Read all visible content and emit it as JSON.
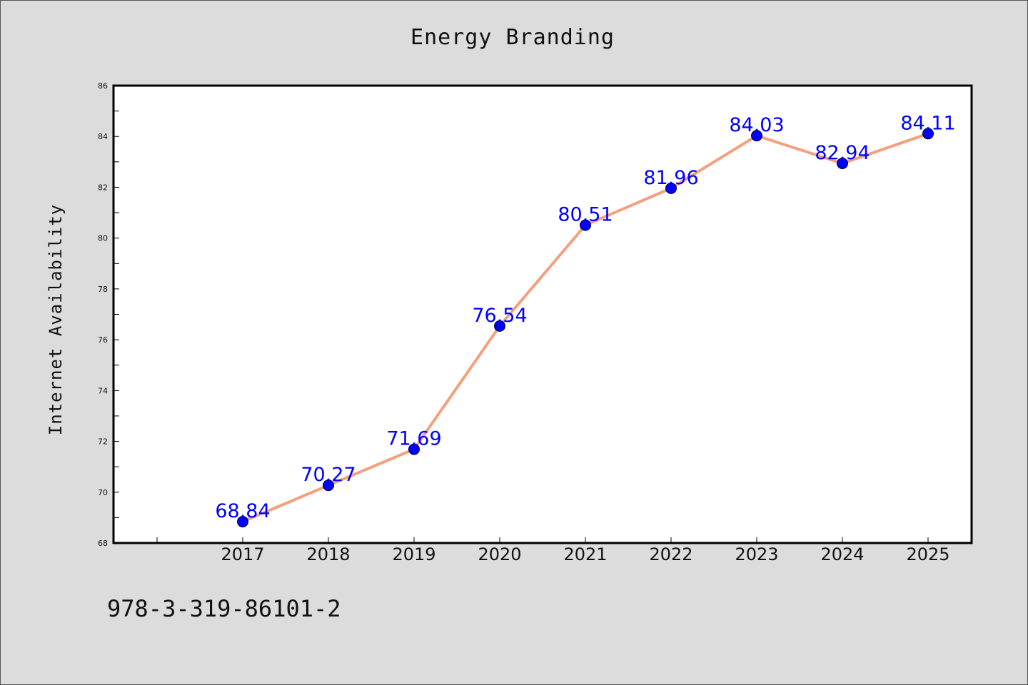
{
  "chart_data": {
    "type": "line",
    "title": "Energy Branding",
    "xlabel": "",
    "ylabel": "Internet Availability",
    "categories": [
      "2017",
      "2018",
      "2019",
      "2020",
      "2021",
      "2022",
      "2023",
      "2024",
      "2025"
    ],
    "series": [
      {
        "values": [
          68.84,
          70.27,
          71.69,
          76.54,
          80.51,
          81.96,
          84.03,
          82.94,
          84.11
        ],
        "labels": [
          "68.84",
          "70.27",
          "71.69",
          "76.54",
          "80.51",
          "81.96",
          "84.03",
          "82.94",
          "84.11"
        ],
        "line_color": "#f4a07e",
        "marker_color": "#0000ff",
        "label_color": "#0000ff"
      }
    ],
    "ylim": [
      68,
      86
    ],
    "yticks": [
      "68",
      "70",
      "72",
      "74",
      "76",
      "78",
      "80",
      "82",
      "84",
      "86"
    ],
    "grid": false,
    "legend": "none"
  },
  "footer": {
    "text": "978-3-319-86101-2"
  },
  "colors": {
    "background": "#dcdcdc",
    "plot_background": "#ffffff",
    "line": "#f4a07e",
    "marker": "#0000ff",
    "data_label": "#0000ff"
  }
}
